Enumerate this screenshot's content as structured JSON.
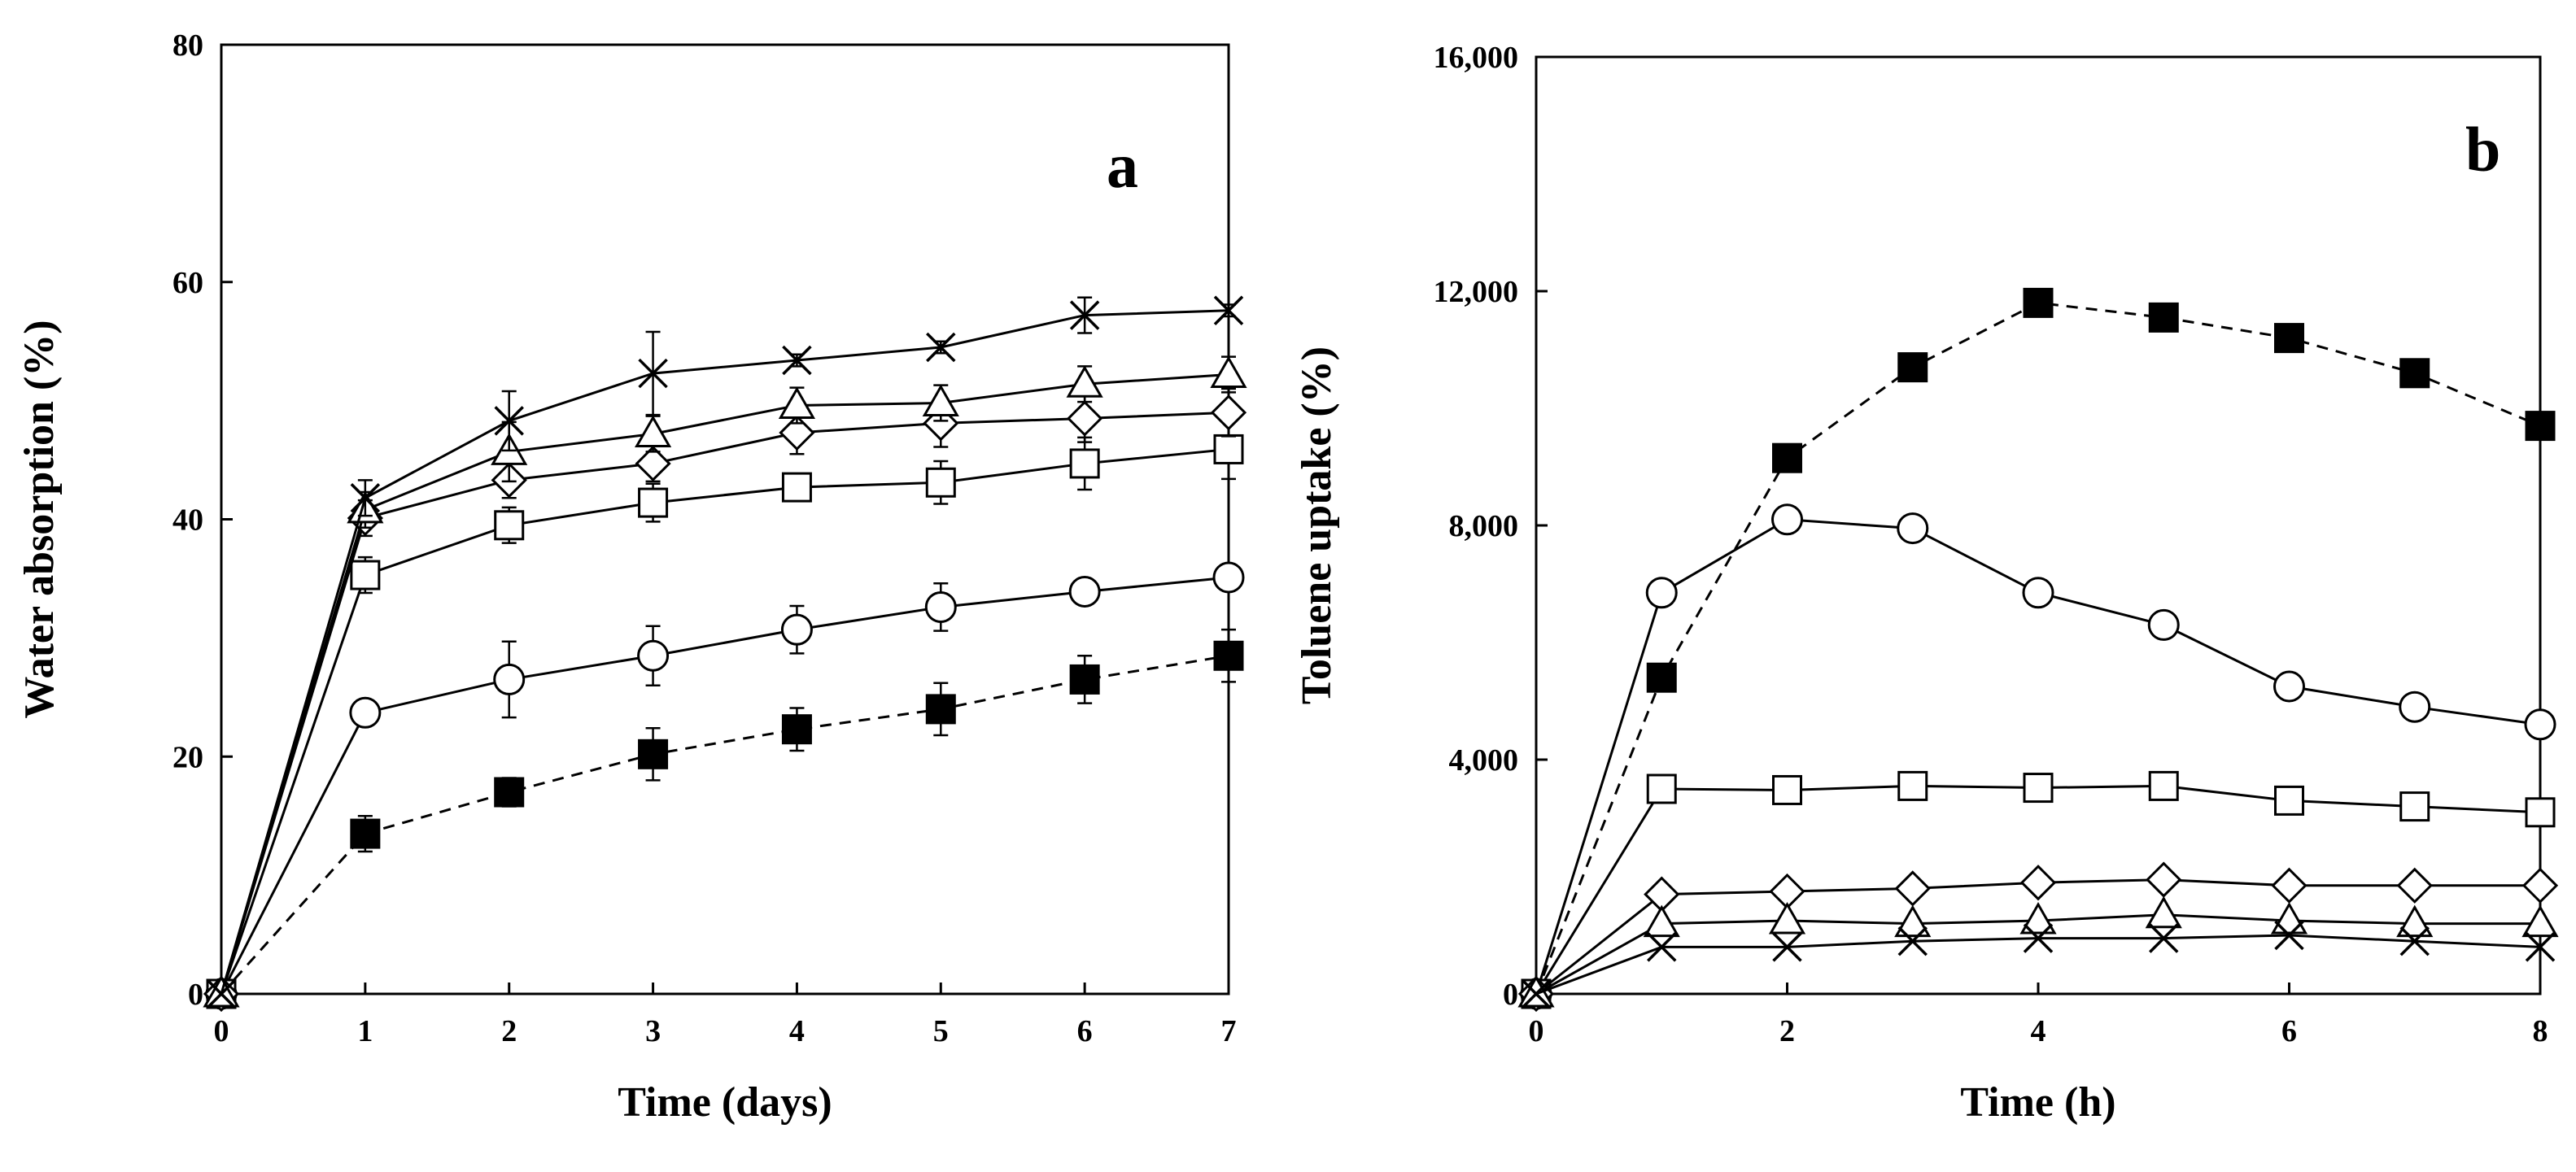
{
  "chart_data": [
    {
      "type": "line",
      "panel_label": "a",
      "xlabel": "Time (days)",
      "ylabel": "Water absorption (%)",
      "xlim": [
        0,
        7
      ],
      "ylim": [
        0,
        80
      ],
      "xticks": [
        0,
        1,
        2,
        3,
        4,
        5,
        6,
        7
      ],
      "yticks": [
        0,
        20,
        40,
        60,
        80
      ],
      "ytick_labels": [
        "0",
        "20",
        "40",
        "60",
        "80"
      ],
      "x": [
        0,
        1,
        2,
        3,
        4,
        5,
        6,
        7
      ],
      "series": [
        {
          "name": "filled-square",
          "marker": "filled-square",
          "dash": true,
          "values": [
            0,
            13.5,
            17,
            20.2,
            22.3,
            24,
            26.5,
            28.5
          ],
          "errors": [
            0,
            1.5,
            1.2,
            2.2,
            1.8,
            2.2,
            2,
            2.2
          ]
        },
        {
          "name": "circle",
          "marker": "circle",
          "dash": false,
          "values": [
            0,
            23.7,
            26.5,
            28.5,
            30.7,
            32.6,
            33.9,
            35.1
          ],
          "errors": [
            0,
            1,
            3.2,
            2.5,
            2,
            2,
            0.8,
            0.8
          ]
        },
        {
          "name": "square",
          "marker": "square",
          "dash": false,
          "values": [
            0,
            35.3,
            39.5,
            41.4,
            42.7,
            43.1,
            44.7,
            45.9
          ],
          "errors": [
            0,
            1.5,
            1.5,
            1.6,
            0.5,
            1.8,
            2.2,
            2.5
          ]
        },
        {
          "name": "diamond",
          "marker": "diamond",
          "dash": false,
          "values": [
            0,
            40.1,
            43.3,
            44.7,
            47.3,
            48.1,
            48.5,
            49
          ],
          "errors": [
            0,
            1.5,
            1.5,
            1.5,
            1.8,
            2,
            2,
            2
          ]
        },
        {
          "name": "triangle",
          "marker": "triangle",
          "dash": false,
          "values": [
            0,
            40.8,
            45.7,
            47.2,
            49.6,
            49.8,
            51.4,
            52.2
          ],
          "errors": [
            0,
            1.5,
            2.5,
            1.5,
            1.5,
            1.5,
            1.5,
            1.5
          ]
        },
        {
          "name": "cross",
          "marker": "cross",
          "dash": false,
          "values": [
            0,
            41.8,
            48.3,
            52.3,
            53.4,
            54.5,
            57.2,
            57.6
          ],
          "errors": [
            0,
            1.5,
            2.5,
            3.5,
            0.5,
            0.5,
            1.5,
            0.5
          ]
        }
      ]
    },
    {
      "type": "line",
      "panel_label": "b",
      "xlabel": "Time (h)",
      "ylabel": "Toluene uptake (%)",
      "xlim": [
        0,
        8
      ],
      "ylim": [
        0,
        16000
      ],
      "xticks": [
        0,
        2,
        4,
        6,
        8
      ],
      "yticks": [
        0,
        4000,
        8000,
        12000,
        16000
      ],
      "ytick_labels": [
        "0",
        "4,000",
        "8,000",
        "12,000",
        "16,000"
      ],
      "x": [
        0,
        1,
        2,
        3,
        4,
        5,
        6,
        7,
        8
      ],
      "series": [
        {
          "name": "filled-square",
          "marker": "filled-square",
          "dash": true,
          "values": [
            0,
            5400,
            9150,
            10700,
            11800,
            11550,
            11200,
            10600,
            9700
          ]
        },
        {
          "name": "circle",
          "marker": "circle",
          "dash": false,
          "values": [
            0,
            6850,
            8100,
            7950,
            6850,
            6300,
            5250,
            4900,
            4600
          ]
        },
        {
          "name": "square",
          "marker": "square",
          "dash": false,
          "values": [
            0,
            3500,
            3480,
            3550,
            3520,
            3550,
            3300,
            3200,
            3100
          ]
        },
        {
          "name": "diamond",
          "marker": "diamond",
          "dash": false,
          "values": [
            0,
            1700,
            1750,
            1800,
            1900,
            1950,
            1850,
            1850,
            1850
          ]
        },
        {
          "name": "triangle",
          "marker": "triangle",
          "dash": false,
          "values": [
            0,
            1200,
            1250,
            1200,
            1250,
            1350,
            1250,
            1200,
            1200
          ]
        },
        {
          "name": "cross",
          "marker": "cross",
          "dash": false,
          "values": [
            0,
            800,
            800,
            900,
            950,
            950,
            1000,
            900,
            800
          ]
        }
      ]
    }
  ]
}
